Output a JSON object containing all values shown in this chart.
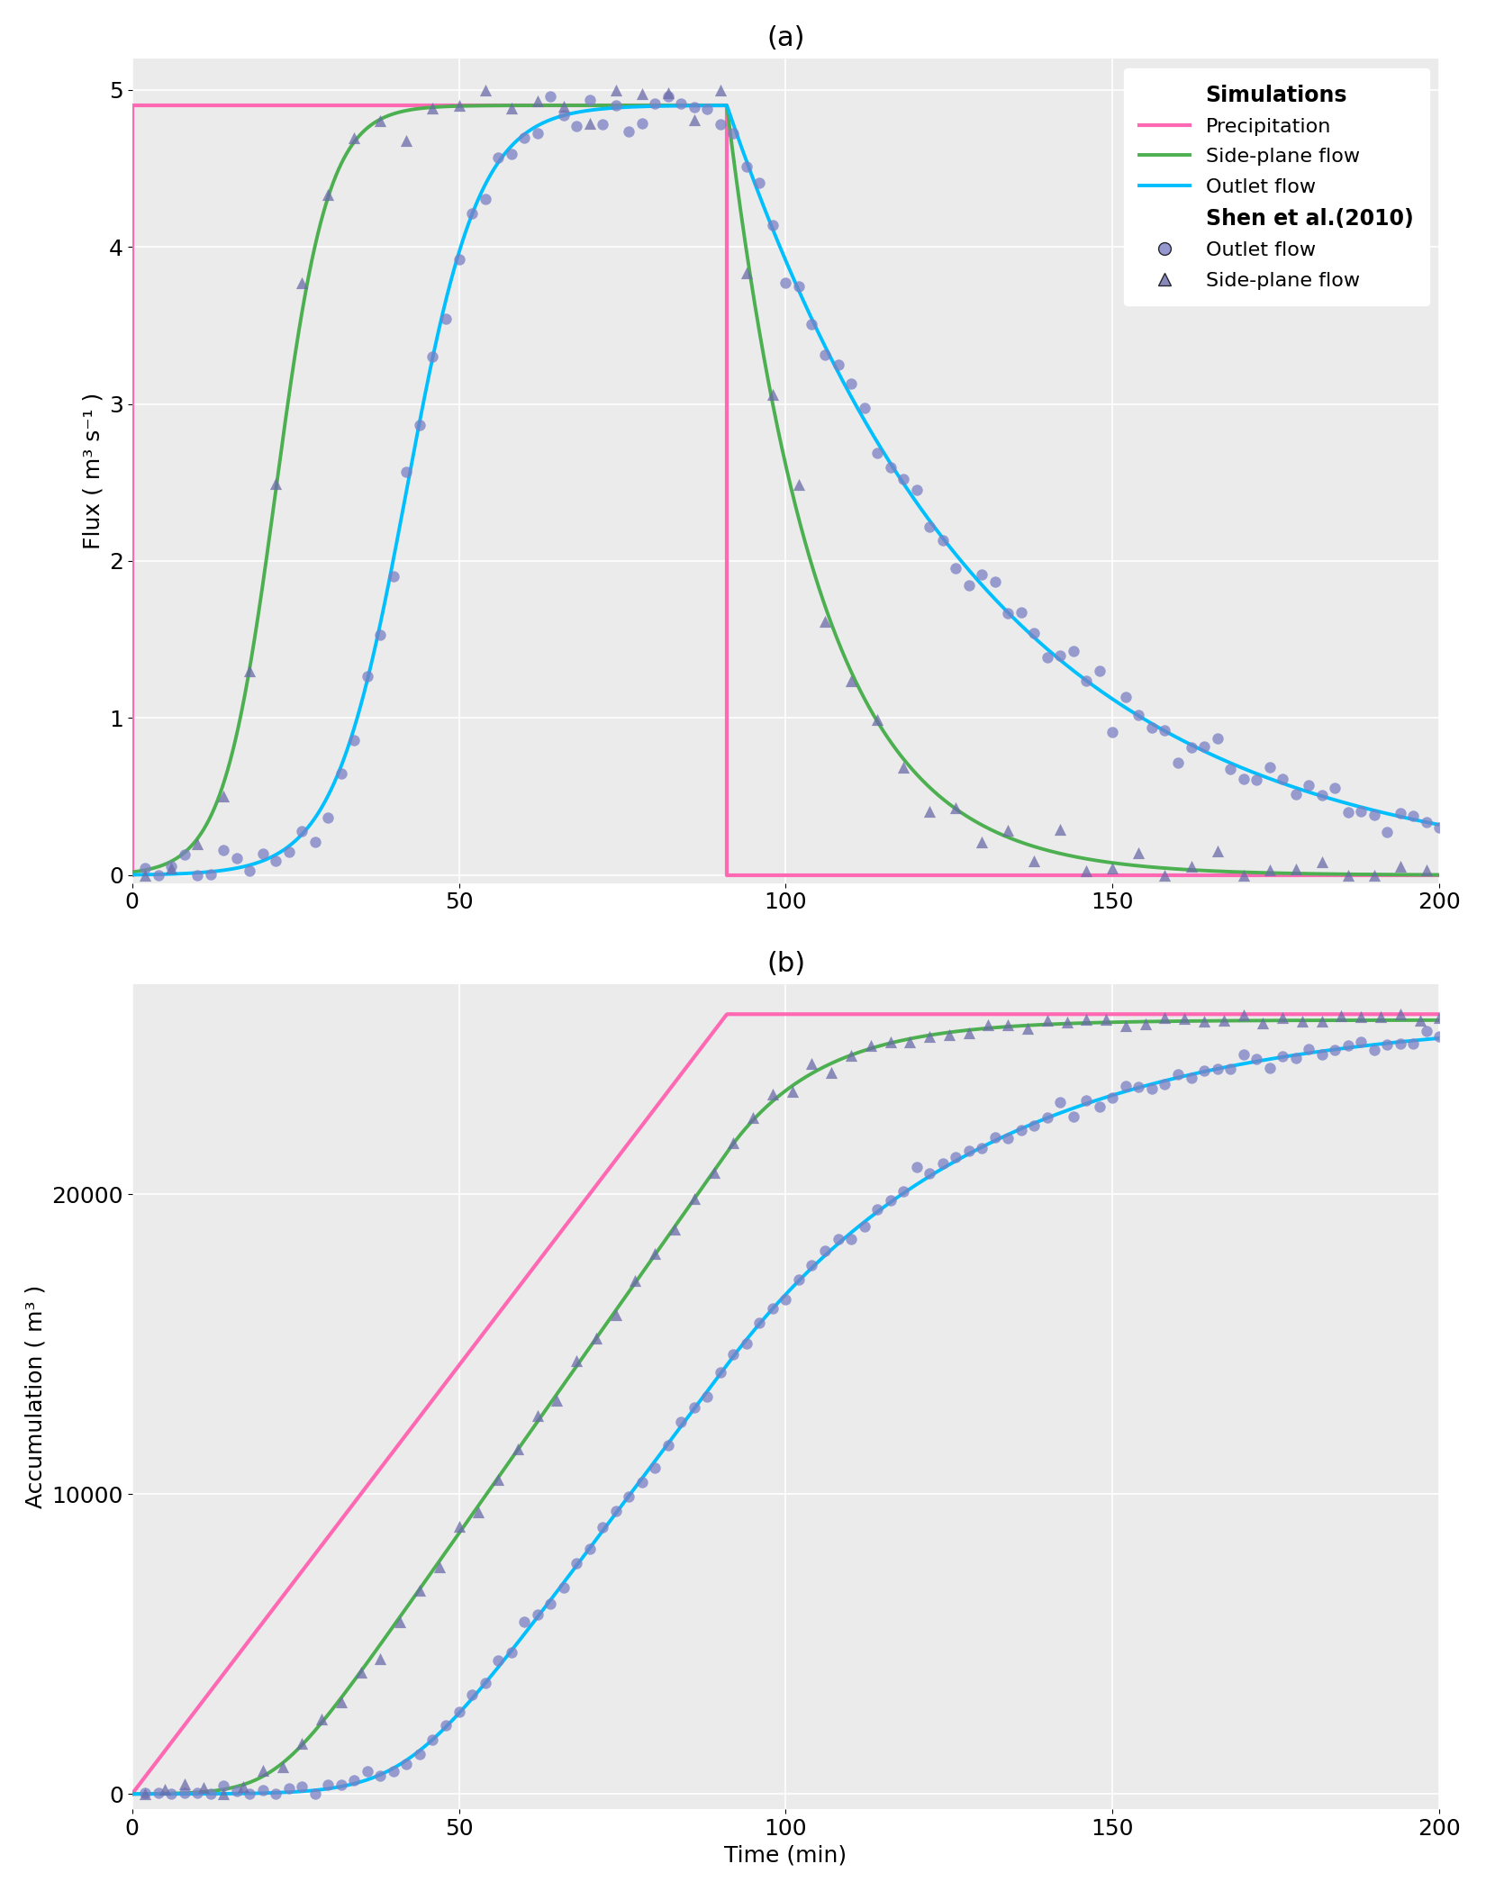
{
  "title_a": "(a)",
  "title_b": "(b)",
  "xlabel": "Time (min)",
  "ylabel_a": "Flux ( m³ s⁻¹ )",
  "ylabel_b": "Accumulation ( m³ )",
  "bg_color": "#ebebeb",
  "colors": {
    "precip": "#FF69B4",
    "side": "#4CAF50",
    "outlet": "#00BFFF",
    "dots": "#7B7FC4",
    "triangles": "#6B6BAA"
  },
  "xlim": [
    0,
    200
  ],
  "ylim_a": [
    -0.05,
    5.2
  ],
  "ylim_b": [
    -500,
    27000
  ],
  "yticks_a": [
    0,
    1,
    2,
    3,
    4,
    5
  ],
  "yticks_b": [
    0,
    10000,
    20000
  ],
  "xticks": [
    0,
    50,
    100,
    150,
    200
  ],
  "precip_peak": 4.9,
  "precip_on": 0,
  "precip_off": 91,
  "total_precip_accum": 26000,
  "precip_rate": 4.9
}
